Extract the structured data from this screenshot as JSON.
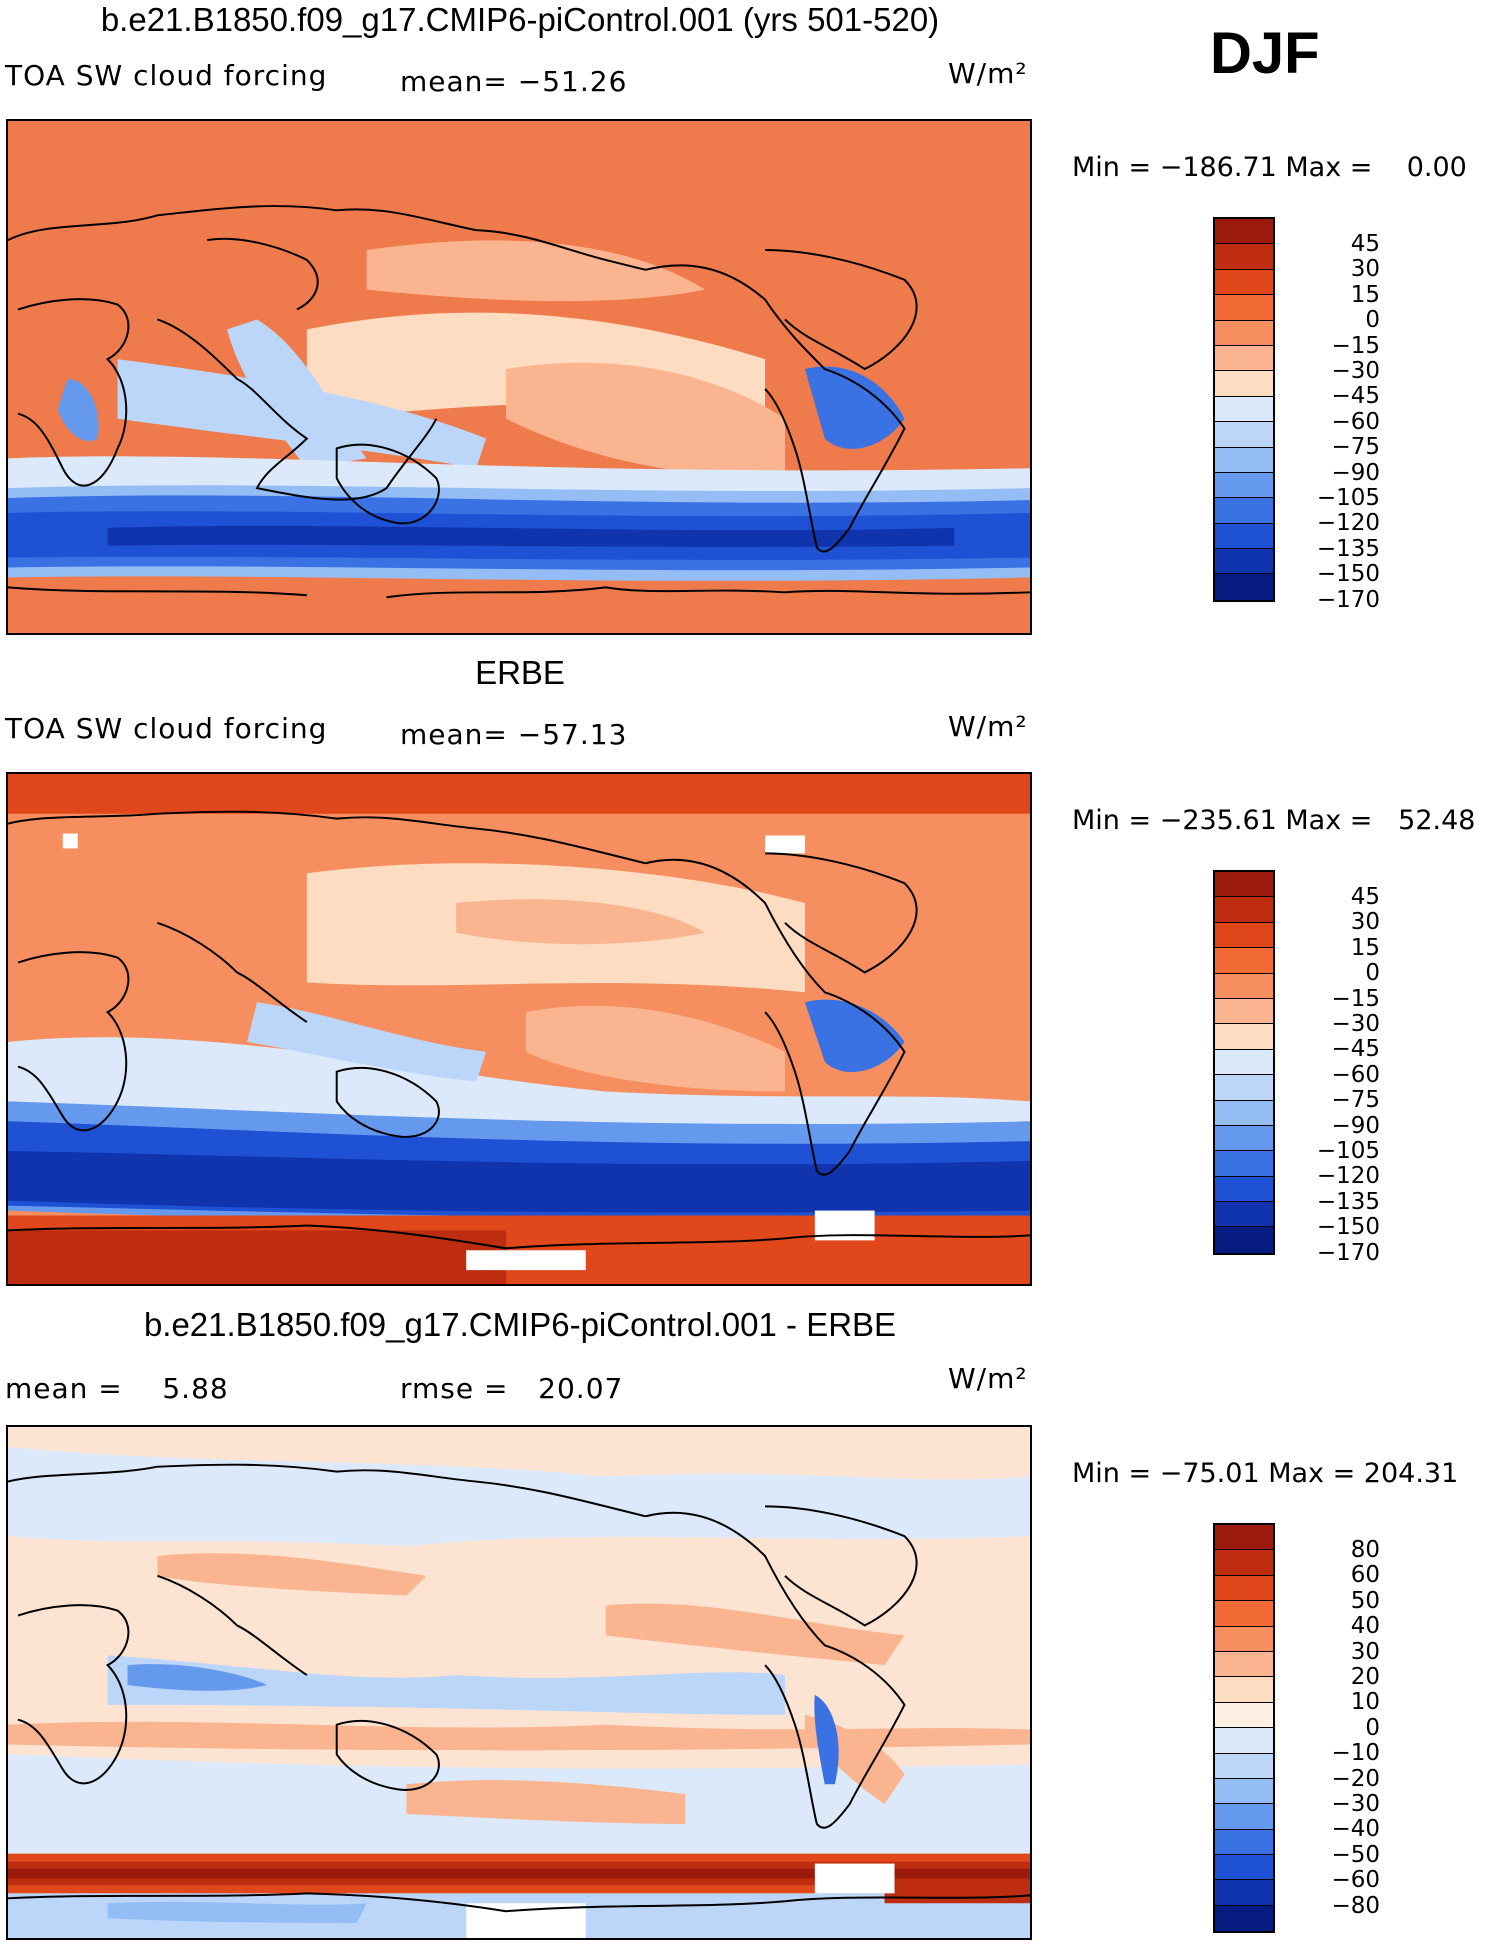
{
  "season": "DJF",
  "panels": [
    {
      "title": "b.e21.B1850.f09_g17.CMIP6-piControl.001 (yrs 501-520)",
      "left_label": "TOA SW cloud forcing",
      "stat_label": "mean= −51.26",
      "units": "W/m²",
      "minmax": "Min = −186.71 Max =    0.00",
      "colorbar": {
        "labels": [
          "45",
          "30",
          "15",
          "0",
          "−15",
          "−30",
          "−45",
          "−60",
          "−75",
          "−90",
          "−105",
          "−120",
          "−135",
          "−150",
          "−170"
        ],
        "colors": [
          "#9c1a0c",
          "#bf2d10",
          "#e0481c",
          "#f26a36",
          "#f78e5f",
          "#fab48f",
          "#fddcc2",
          "#dbe9fb",
          "#bcd6fa",
          "#94bdf6",
          "#6599ee",
          "#3a72e4",
          "#1e51d4",
          "#1034ae",
          "#071c80"
        ]
      },
      "map": {
        "type": "model",
        "ocean": "#ef7a4c"
      }
    },
    {
      "title": "ERBE",
      "left_label": "TOA SW cloud forcing",
      "stat_label": "mean= −57.13",
      "units": "W/m²",
      "minmax": "Min = −235.61 Max =   52.48",
      "colorbar": {
        "labels": [
          "45",
          "30",
          "15",
          "0",
          "−15",
          "−30",
          "−45",
          "−60",
          "−75",
          "−90",
          "−105",
          "−120",
          "−135",
          "−150",
          "−170"
        ],
        "colors": [
          "#9c1a0c",
          "#bf2d10",
          "#e0481c",
          "#f26a36",
          "#f78e5f",
          "#fab48f",
          "#fddcc2",
          "#dbe9fb",
          "#bcd6fa",
          "#94bdf6",
          "#6599ee",
          "#3a72e4",
          "#1e51d4",
          "#1034ae",
          "#071c80"
        ]
      },
      "map": {
        "type": "obs",
        "ocean": "#f26a36"
      }
    },
    {
      "title": "b.e21.B1850.f09_g17.CMIP6-piControl.001 - ERBE",
      "left_label": "mean =    5.88",
      "stat_label": "rmse =   20.07",
      "units": "W/m²",
      "minmax": "Min = −75.01 Max = 204.31",
      "colorbar": {
        "labels": [
          "80",
          "60",
          "50",
          "40",
          "30",
          "20",
          "10",
          "0",
          "−10",
          "−20",
          "−30",
          "−40",
          "−50",
          "−60",
          "−80"
        ],
        "colors": [
          "#9c1a0c",
          "#bf2d10",
          "#e0481c",
          "#f26a36",
          "#f78e5f",
          "#fab48f",
          "#fddcc2",
          "#fdf0e2",
          "#dbe9fb",
          "#bcd6fa",
          "#94bdf6",
          "#6599ee",
          "#3a72e4",
          "#1e51d4",
          "#1034ae",
          "#071c80"
        ]
      },
      "map": {
        "type": "diff",
        "ocean": "#fde4d2"
      }
    }
  ]
}
